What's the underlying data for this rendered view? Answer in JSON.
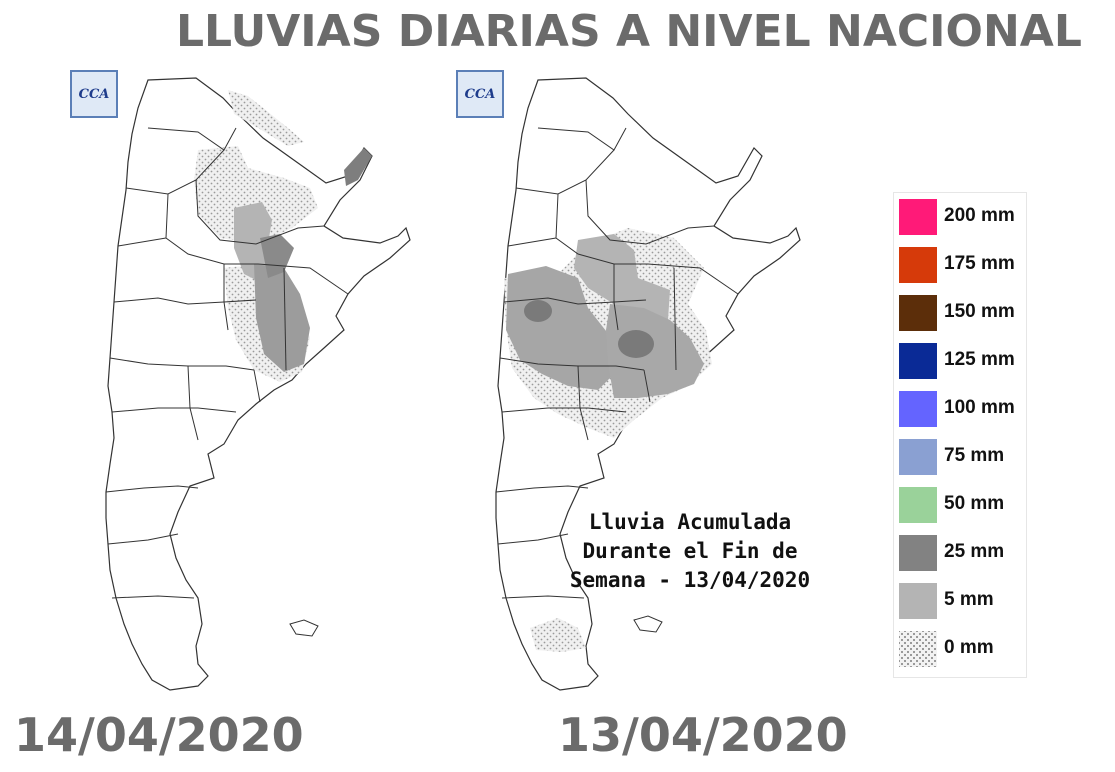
{
  "header": {
    "title": "LLUVIAS DIARIAS A NIVEL NACIONAL"
  },
  "maps": {
    "left": {
      "date": "14/04/2020",
      "logo": "CCA"
    },
    "right": {
      "date": "13/04/2020",
      "logo": "CCA",
      "annotation": [
        "Lluvia Acumulada",
        "Durante el Fin de",
        "Semana - 13/04/2020"
      ]
    }
  },
  "legend": {
    "items": [
      {
        "label": "200 mm",
        "color": "#ff1a78"
      },
      {
        "label": "175 mm",
        "color": "#d63a0a"
      },
      {
        "label": "150 mm",
        "color": "#5c2e0a"
      },
      {
        "label": "125 mm",
        "color": "#0a2a96"
      },
      {
        "label": "100 mm",
        "color": "#6464ff"
      },
      {
        "label": "75 mm",
        "color": "#8aa0d2"
      },
      {
        "label": "50 mm",
        "color": "#9ad29a"
      },
      {
        "label": "25 mm",
        "color": "#828282"
      },
      {
        "label": "5 mm",
        "color": "#b4b4b4"
      },
      {
        "label": "0 mm",
        "color": "stipple"
      }
    ]
  }
}
